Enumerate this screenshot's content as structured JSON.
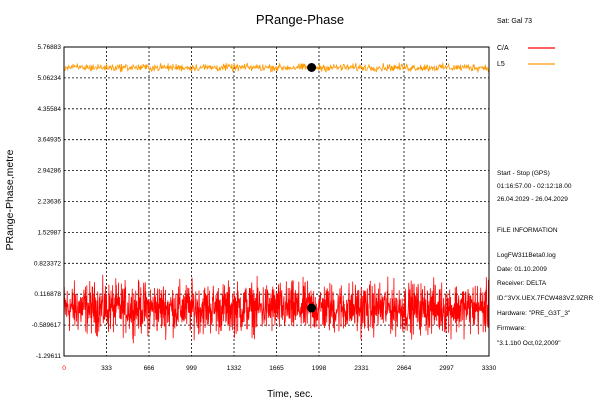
{
  "chart_data": {
    "type": "line",
    "title": "PRange-Phase",
    "xlabel": "Time, sec.",
    "ylabel": "PRange-Phase,metre",
    "sat_label": "Sat: Gal 73",
    "xlim": [
      0,
      3330
    ],
    "ylim": [
      -1.29611,
      5.76883
    ],
    "x_ticks": [
      {
        "value": 0,
        "label": "0"
      },
      {
        "value": 333,
        "label": "333"
      },
      {
        "value": 666,
        "label": "666"
      },
      {
        "value": 999,
        "label": "999"
      },
      {
        "value": 1332,
        "label": "1332"
      },
      {
        "value": 1665,
        "label": "1665"
      },
      {
        "value": 1998,
        "label": "1998"
      },
      {
        "value": 2331,
        "label": "2331"
      },
      {
        "value": 2664,
        "label": "2664"
      },
      {
        "value": 2997,
        "label": "2997"
      },
      {
        "value": 3330,
        "label": "3330"
      }
    ],
    "y_ticks": [
      {
        "value": 5.76883,
        "label": "5.76883"
      },
      {
        "value": 5.06234,
        "label": "5.06234"
      },
      {
        "value": 4.35584,
        "label": "4.35584"
      },
      {
        "value": 3.64935,
        "label": "3.64935"
      },
      {
        "value": 2.94286,
        "label": "2.94286"
      },
      {
        "value": 2.23636,
        "label": "2.23636"
      },
      {
        "value": 1.52987,
        "label": "1.52987"
      },
      {
        "value": 0.823372,
        "label": "0.823372"
      },
      {
        "value": 0.116878,
        "label": "0.116878"
      },
      {
        "value": -0.589617,
        "label": "-0.589617"
      },
      {
        "value": -1.29611,
        "label": "-1.29611"
      }
    ],
    "grid": true,
    "legend_position": "top-right",
    "series": [
      {
        "name": "C/A",
        "color": "#ff0000",
        "mean": -0.2,
        "noise": 0.85,
        "samples": 1600,
        "marker": {
          "x": 1940,
          "y": -0.2
        }
      },
      {
        "name": "L5",
        "color": "#ff9900",
        "mean": 5.3,
        "noise": 0.13,
        "samples": 800,
        "marker": {
          "x": 1940,
          "y": 5.3
        }
      }
    ]
  },
  "info": {
    "start_stop_title": "Start  -  Stop  (GPS)",
    "time_range": "01:16:57.00 - 02:12:18.00",
    "date_range": "26.04.2029 - 26.04.2029",
    "file_info_title": "FILE INFORMATION",
    "log_file": "LogFW311Beta0.log",
    "date": "Date: 01.10.2009",
    "receiver": "Receiver: DELTA",
    "id": "ID:\"3VX.UEX.7FCW483VZ.9ZRR9CC",
    "hardware": "Hardware: \"PRE_G3T_3\"",
    "firmware_title": "Firmware:",
    "firmware": "\"3.1.1b0 Oct,02,2009\""
  }
}
